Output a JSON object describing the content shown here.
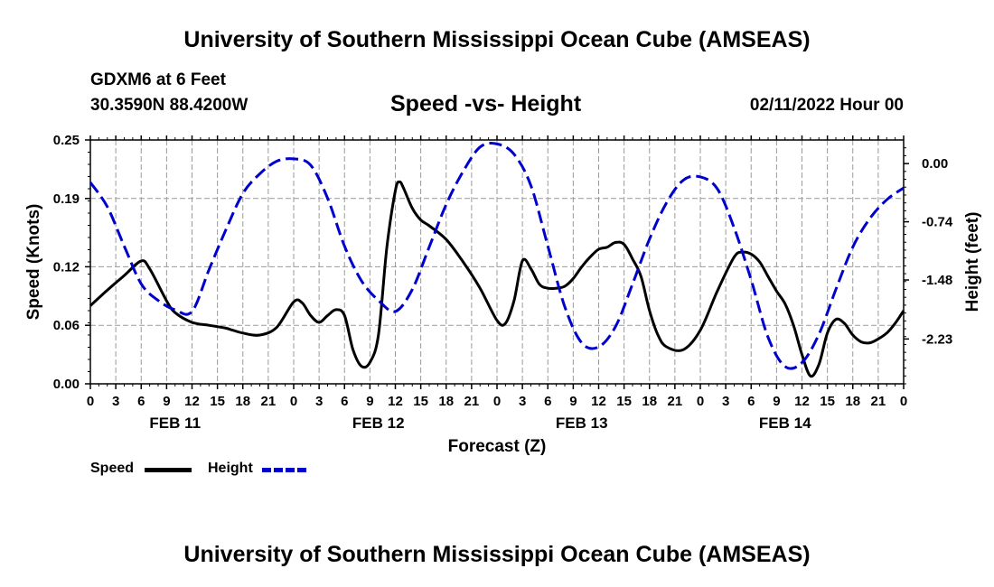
{
  "header": {
    "title": "University of Southern Mississippi Ocean Cube (AMSEAS)",
    "station": "GDXM6 at 6 Feet",
    "coords": "30.3590N  88.4200W",
    "date": "02/11/2022 Hour 00",
    "footer_title": "University of Southern Mississippi Ocean Cube (AMSEAS)"
  },
  "colors": {
    "speed": "#000000",
    "height": "#0000cc",
    "grid": "#9a9a9a"
  },
  "chart_data": {
    "type": "line",
    "title": "Speed -vs- Height",
    "xlabel": "Forecast (Z)",
    "ylabel_left": "Speed (Knots)",
    "ylabel_right": "Height (feet)",
    "x_range_hours": [
      0,
      96
    ],
    "x_tick_labels": [
      "0",
      "3",
      "6",
      "9",
      "12",
      "15",
      "18",
      "21",
      "0",
      "3",
      "6",
      "9",
      "12",
      "15",
      "18",
      "21",
      "0",
      "3",
      "6",
      "9",
      "12",
      "15",
      "18",
      "21",
      "0",
      "3",
      "6",
      "9",
      "12",
      "15",
      "18",
      "21",
      "0"
    ],
    "date_labels": [
      {
        "label": "FEB 11",
        "hour": 10
      },
      {
        "label": "FEB 12",
        "hour": 34
      },
      {
        "label": "FEB 13",
        "hour": 58
      },
      {
        "label": "FEB 14",
        "hour": 82
      }
    ],
    "ylim_left": [
      0,
      0.25
    ],
    "y_ticks_left": [
      "0.00",
      "0.06",
      "0.12",
      "0.19",
      "0.25"
    ],
    "ylim_right": [
      -2.8,
      0.3
    ],
    "y_ticks_right": [
      {
        "label": "0.00",
        "value": 0.0
      },
      {
        "label": "-0.74",
        "value": -0.74
      },
      {
        "label": "-1.48",
        "value": -1.48
      },
      {
        "label": "-2.23",
        "value": -2.23
      }
    ],
    "series": [
      {
        "name": "Speed",
        "axis": "left",
        "x": [
          0,
          2,
          4,
          6,
          7,
          9,
          10,
          12,
          14,
          16,
          18,
          20,
          22,
          24,
          25,
          26,
          27,
          28,
          29,
          30,
          31,
          32,
          33,
          34,
          35,
          36,
          36.5,
          37,
          38,
          39,
          40,
          42,
          44,
          46,
          48,
          49,
          50,
          51,
          52,
          53,
          54,
          55,
          56,
          57,
          58,
          59,
          60,
          61,
          62,
          63,
          64,
          65,
          66,
          67,
          68,
          70,
          72,
          74,
          76,
          77,
          78,
          79,
          80,
          81,
          82,
          83,
          84,
          85,
          86,
          87,
          88,
          89,
          90,
          91,
          92,
          93,
          94,
          95,
          96
        ],
        "values": [
          0.08,
          0.096,
          0.111,
          0.126,
          0.118,
          0.085,
          0.073,
          0.063,
          0.06,
          0.057,
          0.052,
          0.05,
          0.058,
          0.084,
          0.083,
          0.07,
          0.063,
          0.07,
          0.076,
          0.07,
          0.035,
          0.018,
          0.022,
          0.05,
          0.14,
          0.198,
          0.207,
          0.2,
          0.18,
          0.168,
          0.162,
          0.148,
          0.125,
          0.098,
          0.065,
          0.062,
          0.085,
          0.126,
          0.118,
          0.102,
          0.098,
          0.098,
          0.1,
          0.108,
          0.12,
          0.13,
          0.138,
          0.14,
          0.145,
          0.143,
          0.128,
          0.11,
          0.075,
          0.05,
          0.038,
          0.035,
          0.055,
          0.095,
          0.13,
          0.135,
          0.133,
          0.125,
          0.11,
          0.095,
          0.082,
          0.06,
          0.03,
          0.008,
          0.02,
          0.052,
          0.066,
          0.062,
          0.05,
          0.043,
          0.042,
          0.046,
          0.052,
          0.062,
          0.075
        ]
      },
      {
        "name": "Height",
        "axis": "right",
        "x": [
          0,
          2,
          4,
          6,
          8,
          10,
          12,
          14,
          16,
          18,
          20,
          22,
          24,
          26,
          28,
          30,
          32,
          34,
          36,
          38,
          40,
          42,
          44,
          46,
          48,
          50,
          52,
          54,
          56,
          58,
          60,
          62,
          64,
          66,
          68,
          70,
          72,
          74,
          76,
          78,
          80,
          82,
          84,
          86,
          88,
          90,
          92,
          94,
          96
        ],
        "values": [
          -0.24,
          -0.55,
          -1.05,
          -1.53,
          -1.74,
          -1.86,
          -1.88,
          -1.35,
          -0.84,
          -0.38,
          -0.13,
          0.03,
          0.06,
          -0.02,
          -0.44,
          -1.05,
          -1.49,
          -1.74,
          -1.88,
          -1.6,
          -1.06,
          -0.52,
          -0.1,
          0.21,
          0.25,
          0.12,
          -0.28,
          -1.05,
          -1.82,
          -2.28,
          -2.33,
          -2.07,
          -1.53,
          -0.96,
          -0.5,
          -0.21,
          -0.17,
          -0.32,
          -0.82,
          -1.48,
          -2.21,
          -2.58,
          -2.53,
          -2.17,
          -1.6,
          -1.06,
          -0.7,
          -0.46,
          -0.31
        ]
      }
    ]
  },
  "legend": {
    "speed_label": "Speed",
    "height_label": "Height"
  }
}
